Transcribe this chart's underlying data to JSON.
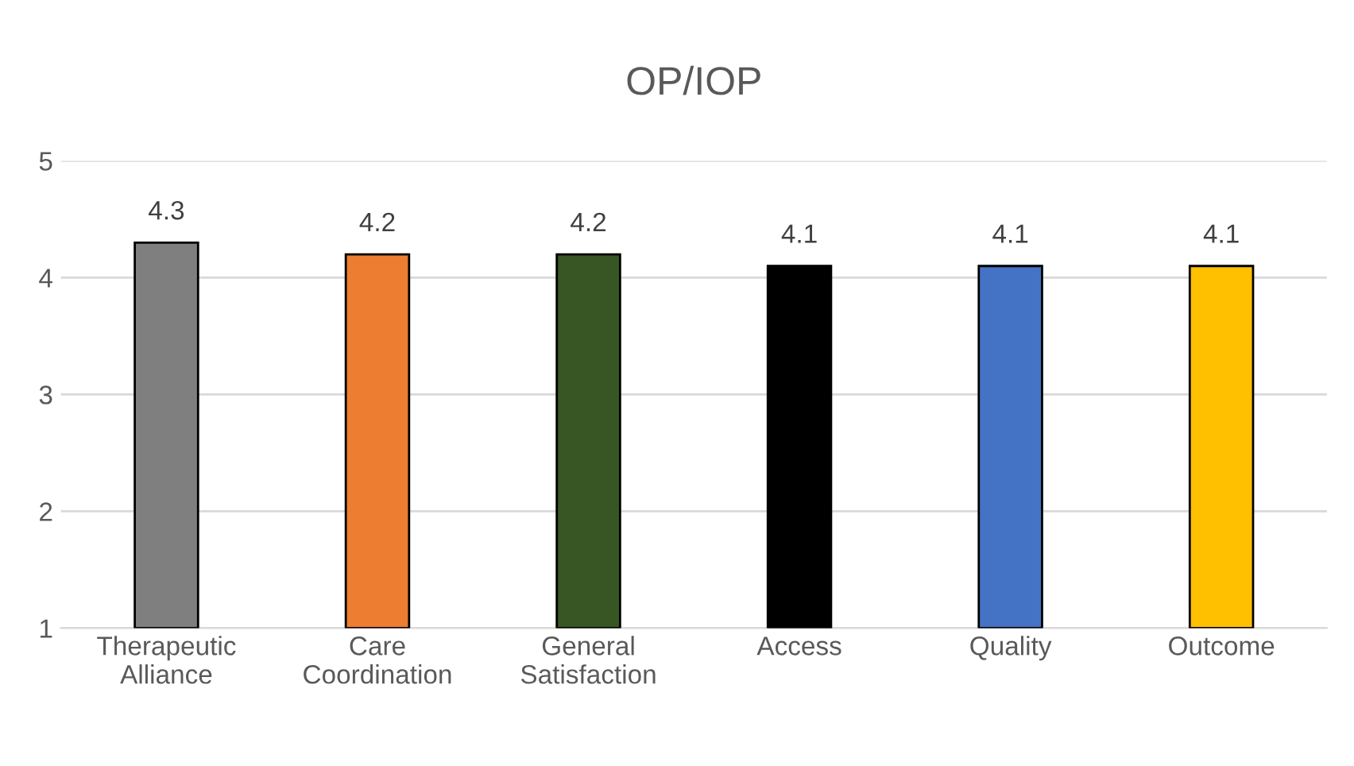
{
  "chart_data": {
    "type": "bar",
    "title": "OP/IOP",
    "categories": [
      "Therapeutic Alliance",
      "Care Coordination",
      "General Satisfaction",
      "Access",
      "Quality",
      "Outcome"
    ],
    "values": [
      4.3,
      4.2,
      4.2,
      4.1,
      4.1,
      4.1
    ],
    "colors": [
      "#7f7f7f",
      "#ed7d31",
      "#375623",
      "#000000",
      "#4472c4",
      "#ffc000"
    ],
    "ylim": [
      1,
      5
    ],
    "yticks": [
      1,
      2,
      3,
      4,
      5
    ],
    "grid": "y",
    "data_labels": true
  }
}
